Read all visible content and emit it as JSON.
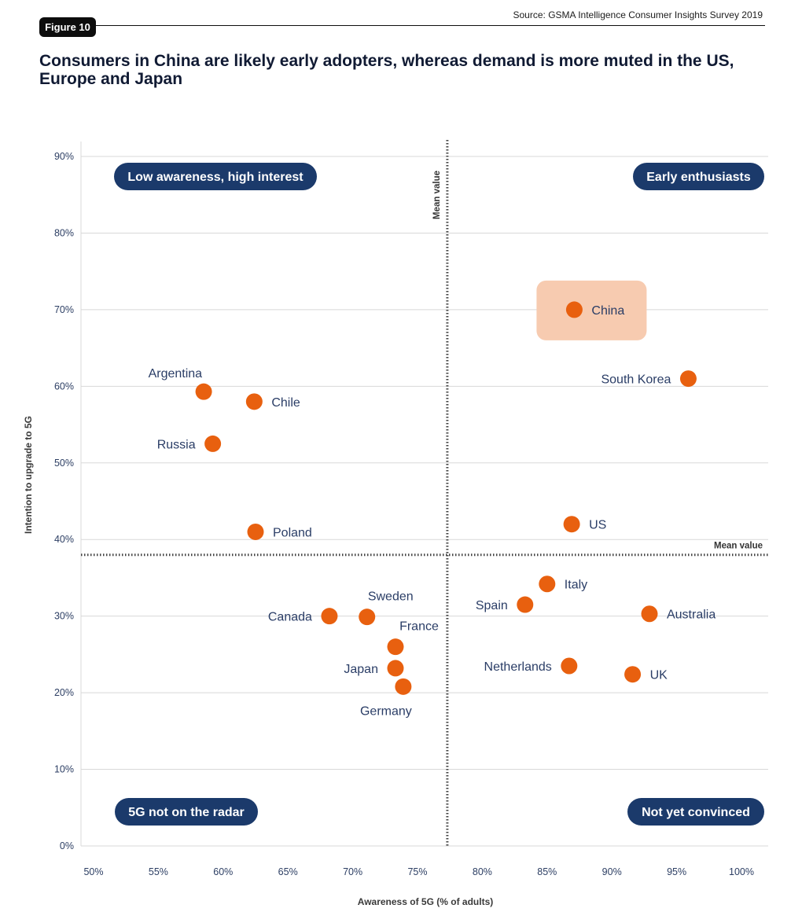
{
  "header": {
    "figure_label": "Figure 10",
    "source": "Source: GSMA Intelligence Consumer Insights Survey 2019",
    "title": "Consumers in China are likely early adopters, whereas demand is more muted in the US, Europe and Japan"
  },
  "colors": {
    "point": "#e8600f",
    "highlight": "#f7cbb0",
    "quadrant_pill": "#1b3a6b",
    "grid": "#d8d8d8",
    "mean_line": "#444444"
  },
  "chart_data": {
    "type": "scatter",
    "xlabel": "Awareness of 5G (% of adults)",
    "ylabel": "Intention to upgrade to 5G",
    "xlim": [
      50,
      100
    ],
    "ylim": [
      0,
      90
    ],
    "x_ticks": [
      50,
      55,
      60,
      65,
      70,
      75,
      80,
      85,
      90,
      95,
      100
    ],
    "y_ticks": [
      0,
      10,
      20,
      30,
      40,
      50,
      60,
      70,
      80,
      90
    ],
    "x_tick_labels": [
      "50%",
      "55%",
      "60%",
      "65%",
      "70%",
      "75%",
      "80%",
      "85%",
      "90%",
      "95%",
      "100%"
    ],
    "y_tick_labels": [
      "0%",
      "10%",
      "20%",
      "30%",
      "40%",
      "50%",
      "60%",
      "70%",
      "80%",
      "90%"
    ],
    "grid": true,
    "mean_x": 77.3,
    "mean_y": 38,
    "mean_x_label": "Mean value",
    "mean_y_label": "Mean value",
    "highlight": "China",
    "points": [
      {
        "label": "China",
        "x": 87.1,
        "y": 70,
        "label_pos": "right"
      },
      {
        "label": "South Korea",
        "x": 95.9,
        "y": 61,
        "label_pos": "left"
      },
      {
        "label": "US",
        "x": 86.9,
        "y": 42,
        "label_pos": "right"
      },
      {
        "label": "Argentina",
        "x": 58.5,
        "y": 59.3,
        "label_pos": "above-left"
      },
      {
        "label": "Chile",
        "x": 62.4,
        "y": 58,
        "label_pos": "right"
      },
      {
        "label": "Russia",
        "x": 59.2,
        "y": 52.5,
        "label_pos": "left"
      },
      {
        "label": "Poland",
        "x": 62.5,
        "y": 41,
        "label_pos": "right"
      },
      {
        "label": "Canada",
        "x": 68.2,
        "y": 30,
        "label_pos": "left"
      },
      {
        "label": "Sweden",
        "x": 71.1,
        "y": 29.9,
        "label_pos": "above-right"
      },
      {
        "label": "France",
        "x": 73.3,
        "y": 26,
        "label_pos": "above-right"
      },
      {
        "label": "Japan",
        "x": 73.3,
        "y": 23.2,
        "label_pos": "left"
      },
      {
        "label": "Germany",
        "x": 73.9,
        "y": 20.8,
        "label_pos": "below"
      },
      {
        "label": "Italy",
        "x": 85.0,
        "y": 34.2,
        "label_pos": "right"
      },
      {
        "label": "Spain",
        "x": 83.3,
        "y": 31.5,
        "label_pos": "left"
      },
      {
        "label": "Australia",
        "x": 92.9,
        "y": 30.3,
        "label_pos": "right"
      },
      {
        "label": "Netherlands",
        "x": 86.7,
        "y": 23.5,
        "label_pos": "left"
      },
      {
        "label": "UK",
        "x": 91.6,
        "y": 22.4,
        "label_pos": "right"
      }
    ],
    "quadrants": {
      "top_left": "Low awareness, high interest",
      "top_right": "Early enthusiasts",
      "bottom_left": "5G not on the radar",
      "bottom_right": "Not yet convinced"
    }
  }
}
